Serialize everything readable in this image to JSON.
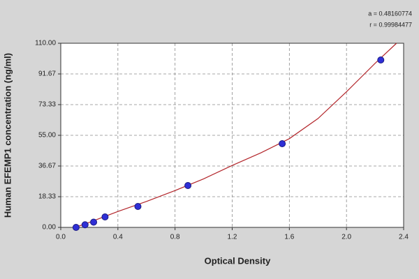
{
  "chart_data": {
    "type": "scatter",
    "x_label": "Optical Density",
    "y_label": "Human EFEMP1 concentration (ng/ml)",
    "annotations": [
      "a = 0.48160774",
      "r = 0.99984477"
    ],
    "xlim": [
      0,
      2.4
    ],
    "xticks": [
      {
        "value": 0,
        "label": "0.0"
      },
      {
        "value": 0.4,
        "label": "0.4"
      },
      {
        "value": 0.8,
        "label": "0.8"
      },
      {
        "value": 1.2,
        "label": "1.2"
      },
      {
        "value": 1.6,
        "label": "1.6"
      },
      {
        "value": 2,
        "label": "2.0"
      },
      {
        "value": 2.4,
        "label": "2.4"
      }
    ],
    "ylim": [
      0,
      110
    ],
    "yticks": [
      {
        "value": 0,
        "label": "0.00"
      },
      18.33,
      36.67,
      {
        "value": 55,
        "label": "55.00"
      },
      73.33,
      91.67,
      {
        "value": 110,
        "label": "110.00"
      }
    ],
    "grid": true,
    "series": [
      {
        "type": "scatter",
        "color": "#2f2fd6",
        "x": [
          0.107,
          0.17,
          0.23,
          0.31,
          0.54,
          0.89,
          1.55,
          2.24
        ],
        "values": [
          0,
          1.56,
          3.13,
          6.25,
          12.5,
          25,
          50,
          100
        ]
      },
      {
        "type": "line",
        "color": "#b3262b",
        "x": [
          0.1,
          0.2,
          0.4,
          0.6,
          0.8,
          1.0,
          1.2,
          1.4,
          1.6,
          1.8,
          2.0,
          2.2,
          2.35
        ],
        "values": [
          0,
          3,
          9.5,
          15.5,
          22,
          29,
          37,
          44.5,
          53,
          65,
          81,
          98,
          110
        ]
      }
    ]
  }
}
